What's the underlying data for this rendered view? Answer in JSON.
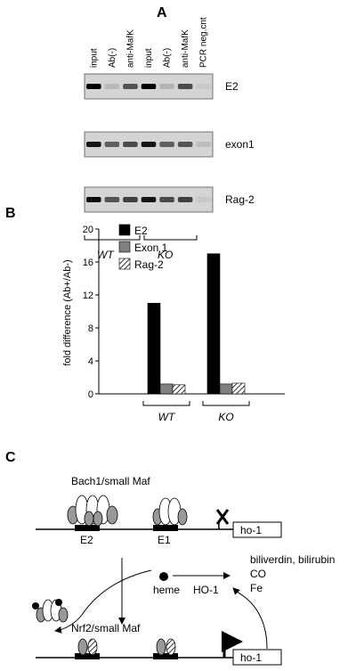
{
  "panel_a": {
    "letter": "A",
    "lanes": [
      "input",
      "Ab(-)",
      "anti-MafK",
      "input",
      "Ab(-)",
      "anti-MafK",
      "PCR neg.cnt"
    ],
    "rows": [
      {
        "label": "E2",
        "intensity": [
          1.0,
          0.12,
          0.6,
          1.0,
          0.15,
          0.65,
          0.05
        ]
      },
      {
        "label": "exon1",
        "intensity": [
          0.9,
          0.55,
          0.65,
          0.9,
          0.55,
          0.6,
          0.1
        ]
      },
      {
        "label": "Rag-2",
        "intensity": [
          0.95,
          0.6,
          0.7,
          0.9,
          0.65,
          0.7,
          0.05
        ]
      }
    ],
    "groups": [
      "WT",
      "KO"
    ]
  },
  "panel_b": {
    "letter": "B",
    "chart_data": {
      "type": "bar",
      "categories": [
        "WT",
        "KO"
      ],
      "series": [
        {
          "name": "E2",
          "values": [
            11,
            17
          ],
          "color": "#000000"
        },
        {
          "name": "Exon 1",
          "values": [
            1.2,
            1.2
          ],
          "color": "#808080"
        },
        {
          "name": "Rag-2",
          "values": [
            1.1,
            1.3
          ],
          "color": "hatched"
        }
      ],
      "ylabel": "fold difference (Ab+/Ab-)",
      "ylim": [
        0,
        20
      ],
      "yticks": [
        0,
        4,
        8,
        12,
        16,
        20
      ]
    }
  },
  "panel_c": {
    "letter": "C",
    "bach1_label": "Bach1/small Maf",
    "e2_label": "E2",
    "e1_label": "E1",
    "gene_label": "ho-1",
    "heme_label": "heme",
    "ho1_label": "HO-1",
    "products": [
      "biliverdin, bilirubin",
      "CO",
      "Fe"
    ],
    "nrf2_label": "Nrf2/small Maf",
    "gene_label2": "ho-1"
  }
}
